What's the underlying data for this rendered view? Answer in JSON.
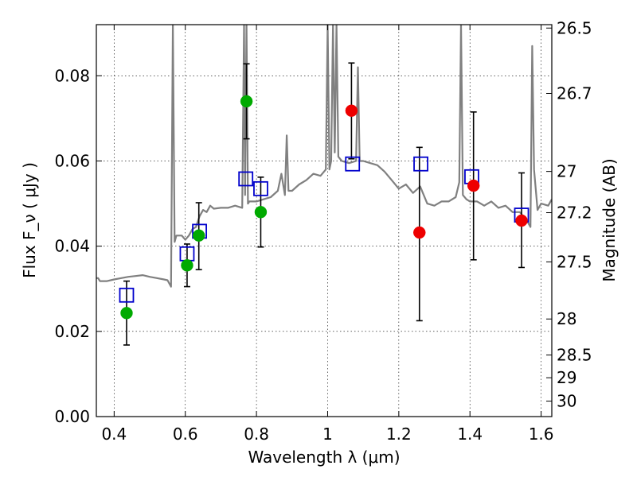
{
  "chart_data": {
    "type": "scatter",
    "xlabel": "Wavelength λ (μm)",
    "ylabel": "Flux  F_ν  ( μJy )",
    "y2label": "Magnitude (AB)",
    "xlim": [
      0.35,
      1.63
    ],
    "ylim": [
      0.0,
      0.092
    ],
    "grid": true,
    "x_ticks": [
      0.4,
      0.6,
      0.8,
      1.0,
      1.2,
      1.4,
      1.6
    ],
    "x_tick_labels": [
      "0.4",
      "0.6",
      "0.8",
      "1",
      "1.2",
      "1.4",
      "1.6"
    ],
    "y_ticks": [
      0.0,
      0.02,
      0.04,
      0.06,
      0.08
    ],
    "y_tick_labels": [
      "0.00",
      "0.02",
      "0.04",
      "0.06",
      "0.08"
    ],
    "mag_ticks": [
      26.5,
      26.7,
      27,
      27.2,
      27.5,
      28,
      28.5,
      29,
      30
    ],
    "mag_tick_labels": [
      "26.5",
      "26.7",
      "27",
      "27.2",
      "27.5",
      "28",
      "28.5",
      "29",
      "30"
    ],
    "series": [
      {
        "kind": "model-spectrum",
        "color": "#808080",
        "x": [
          0.35,
          0.355,
          0.36,
          0.38,
          0.4,
          0.42,
          0.44,
          0.46,
          0.48,
          0.5,
          0.52,
          0.54,
          0.55,
          0.56,
          0.565,
          0.57,
          0.575,
          0.58,
          0.59,
          0.6,
          0.61,
          0.62,
          0.63,
          0.64,
          0.65,
          0.66,
          0.67,
          0.68,
          0.7,
          0.72,
          0.74,
          0.76,
          0.765,
          0.768,
          0.772,
          0.776,
          0.78,
          0.8,
          0.82,
          0.84,
          0.86,
          0.87,
          0.88,
          0.885,
          0.89,
          0.9,
          0.92,
          0.94,
          0.96,
          0.98,
          0.995,
          1.0,
          1.005,
          1.01,
          1.015,
          1.02,
          1.025,
          1.03,
          1.04,
          1.06,
          1.08,
          1.085,
          1.09,
          1.1,
          1.12,
          1.14,
          1.16,
          1.18,
          1.2,
          1.22,
          1.24,
          1.26,
          1.28,
          1.3,
          1.32,
          1.34,
          1.36,
          1.37,
          1.375,
          1.38,
          1.39,
          1.4,
          1.42,
          1.44,
          1.46,
          1.48,
          1.5,
          1.52,
          1.54,
          1.56,
          1.57,
          1.575,
          1.58,
          1.59,
          1.6,
          1.62,
          1.63
        ],
        "y": [
          0.0325,
          0.0325,
          0.0318,
          0.0318,
          0.0322,
          0.0325,
          0.0328,
          0.033,
          0.0332,
          0.0328,
          0.0325,
          0.0322,
          0.032,
          0.0305,
          0.092,
          0.041,
          0.0425,
          0.0425,
          0.0425,
          0.0415,
          0.0425,
          0.044,
          0.0445,
          0.047,
          0.0485,
          0.048,
          0.0495,
          0.0488,
          0.049,
          0.049,
          0.0495,
          0.049,
          0.092,
          0.052,
          0.092,
          0.05,
          0.0505,
          0.0505,
          0.051,
          0.0515,
          0.053,
          0.057,
          0.052,
          0.066,
          0.053,
          0.053,
          0.0545,
          0.0555,
          0.057,
          0.0565,
          0.058,
          0.092,
          0.058,
          0.06,
          0.092,
          0.062,
          0.092,
          0.061,
          0.06,
          0.0595,
          0.06,
          0.082,
          0.06,
          0.06,
          0.0595,
          0.059,
          0.0575,
          0.0555,
          0.0535,
          0.0545,
          0.0525,
          0.054,
          0.05,
          0.0495,
          0.0505,
          0.0505,
          0.0515,
          0.055,
          0.092,
          0.052,
          0.051,
          0.0505,
          0.0505,
          0.0495,
          0.0505,
          0.049,
          0.0495,
          0.048,
          0.048,
          0.046,
          0.0445,
          0.087,
          0.058,
          0.0485,
          0.05,
          0.0495,
          0.051
        ]
      },
      {
        "kind": "measured-green",
        "color": "#00aa00",
        "x": [
          0.435,
          0.605,
          0.638,
          0.772,
          0.812
        ],
        "y": [
          0.0243,
          0.0355,
          0.0425,
          0.074,
          0.048
        ],
        "yerr_low": [
          0.0168,
          0.0305,
          0.0345,
          0.0652,
          0.0398
        ],
        "yerr_high": [
          0.0318,
          0.0405,
          0.0502,
          0.0828,
          0.0562
        ]
      },
      {
        "kind": "measured-red",
        "color": "#ee0000",
        "x": [
          1.067,
          1.258,
          1.41,
          1.545
        ],
        "y": [
          0.0718,
          0.0432,
          0.0542,
          0.046
        ],
        "yerr_low": [
          0.0605,
          0.0225,
          0.0368,
          0.035
        ],
        "yerr_high": [
          0.083,
          0.0632,
          0.0715,
          0.0572
        ]
      },
      {
        "kind": "model-band",
        "color": "#0000cc",
        "x": [
          0.435,
          0.605,
          0.64,
          0.77,
          0.812,
          1.07,
          1.262,
          1.405,
          1.545
        ],
        "y": [
          0.0285,
          0.0382,
          0.0435,
          0.0558,
          0.0535,
          0.0593,
          0.0593,
          0.0563,
          0.0473
        ]
      }
    ]
  }
}
